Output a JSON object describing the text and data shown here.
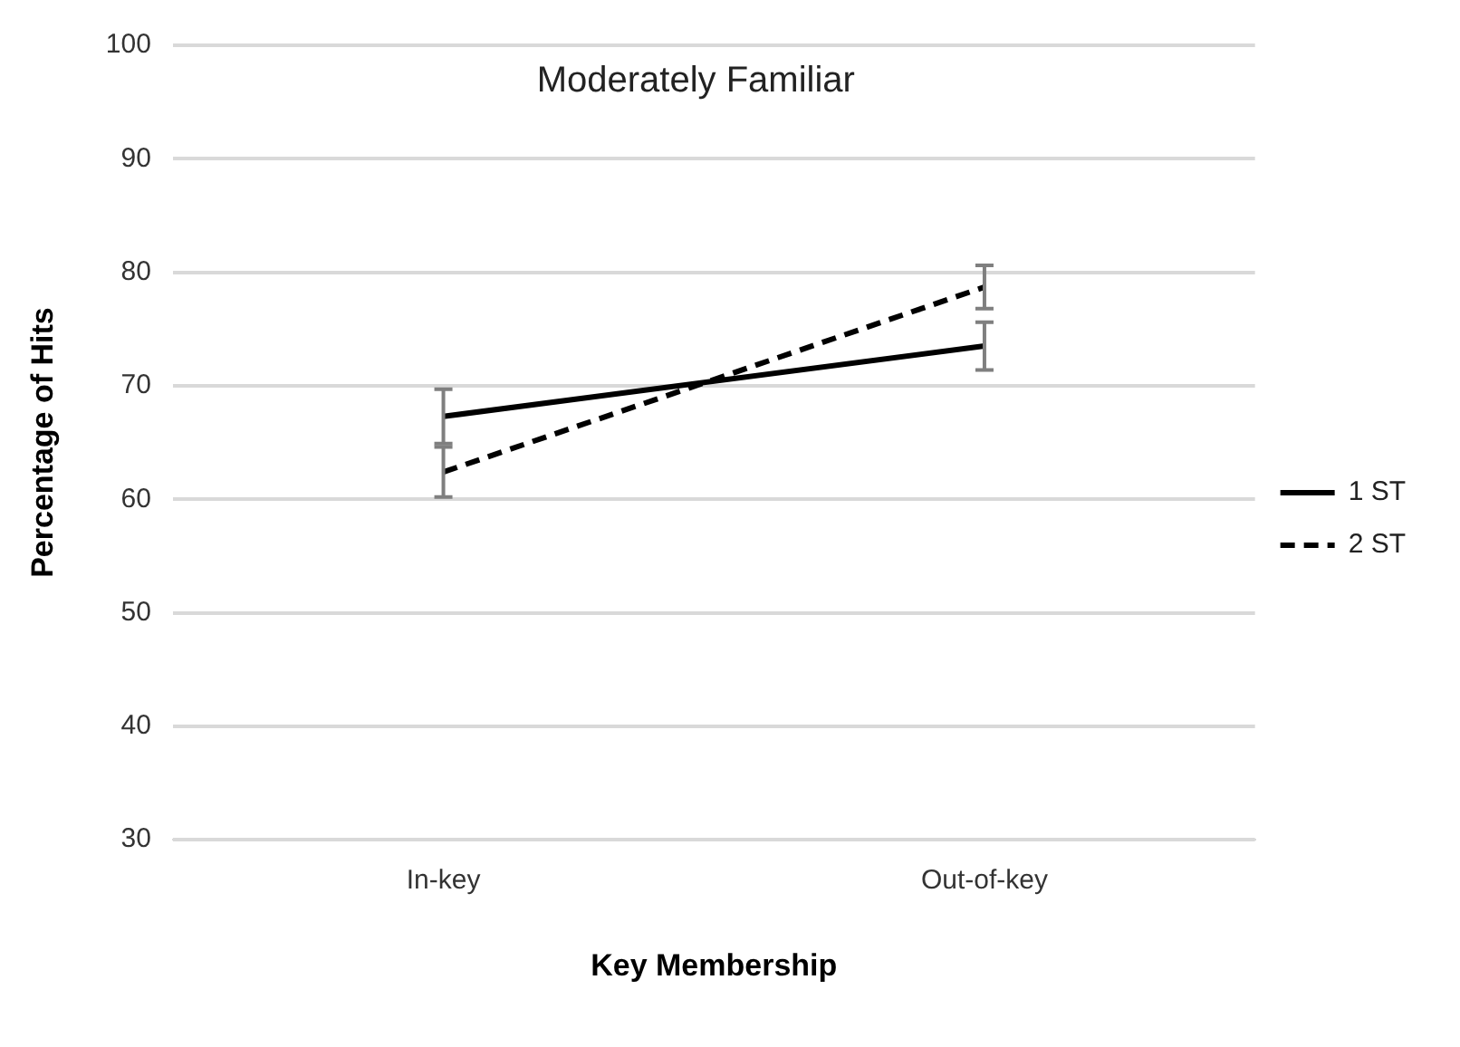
{
  "chart_data": {
    "type": "line",
    "title": "Moderately Familiar",
    "xlabel": "Key Membership",
    "ylabel": "Percentage of Hits",
    "categories": [
      "In-key",
      "Out-of-key"
    ],
    "series": [
      {
        "name": "1 ST",
        "color": "#000000",
        "values": [
          67.3,
          73.5
        ],
        "errors": [
          2.4,
          2.1
        ],
        "line_style": "solid"
      },
      {
        "name": "2 ST",
        "color": "#000000",
        "values": [
          62.4,
          78.7
        ],
        "errors": [
          2.2,
          1.9
        ],
        "line_style": "dashed"
      }
    ],
    "ylim": [
      30,
      100
    ],
    "yticks": [
      30,
      40,
      50,
      60,
      70,
      80,
      90,
      100
    ],
    "grid": "y",
    "legend": "right",
    "marker": "none"
  }
}
